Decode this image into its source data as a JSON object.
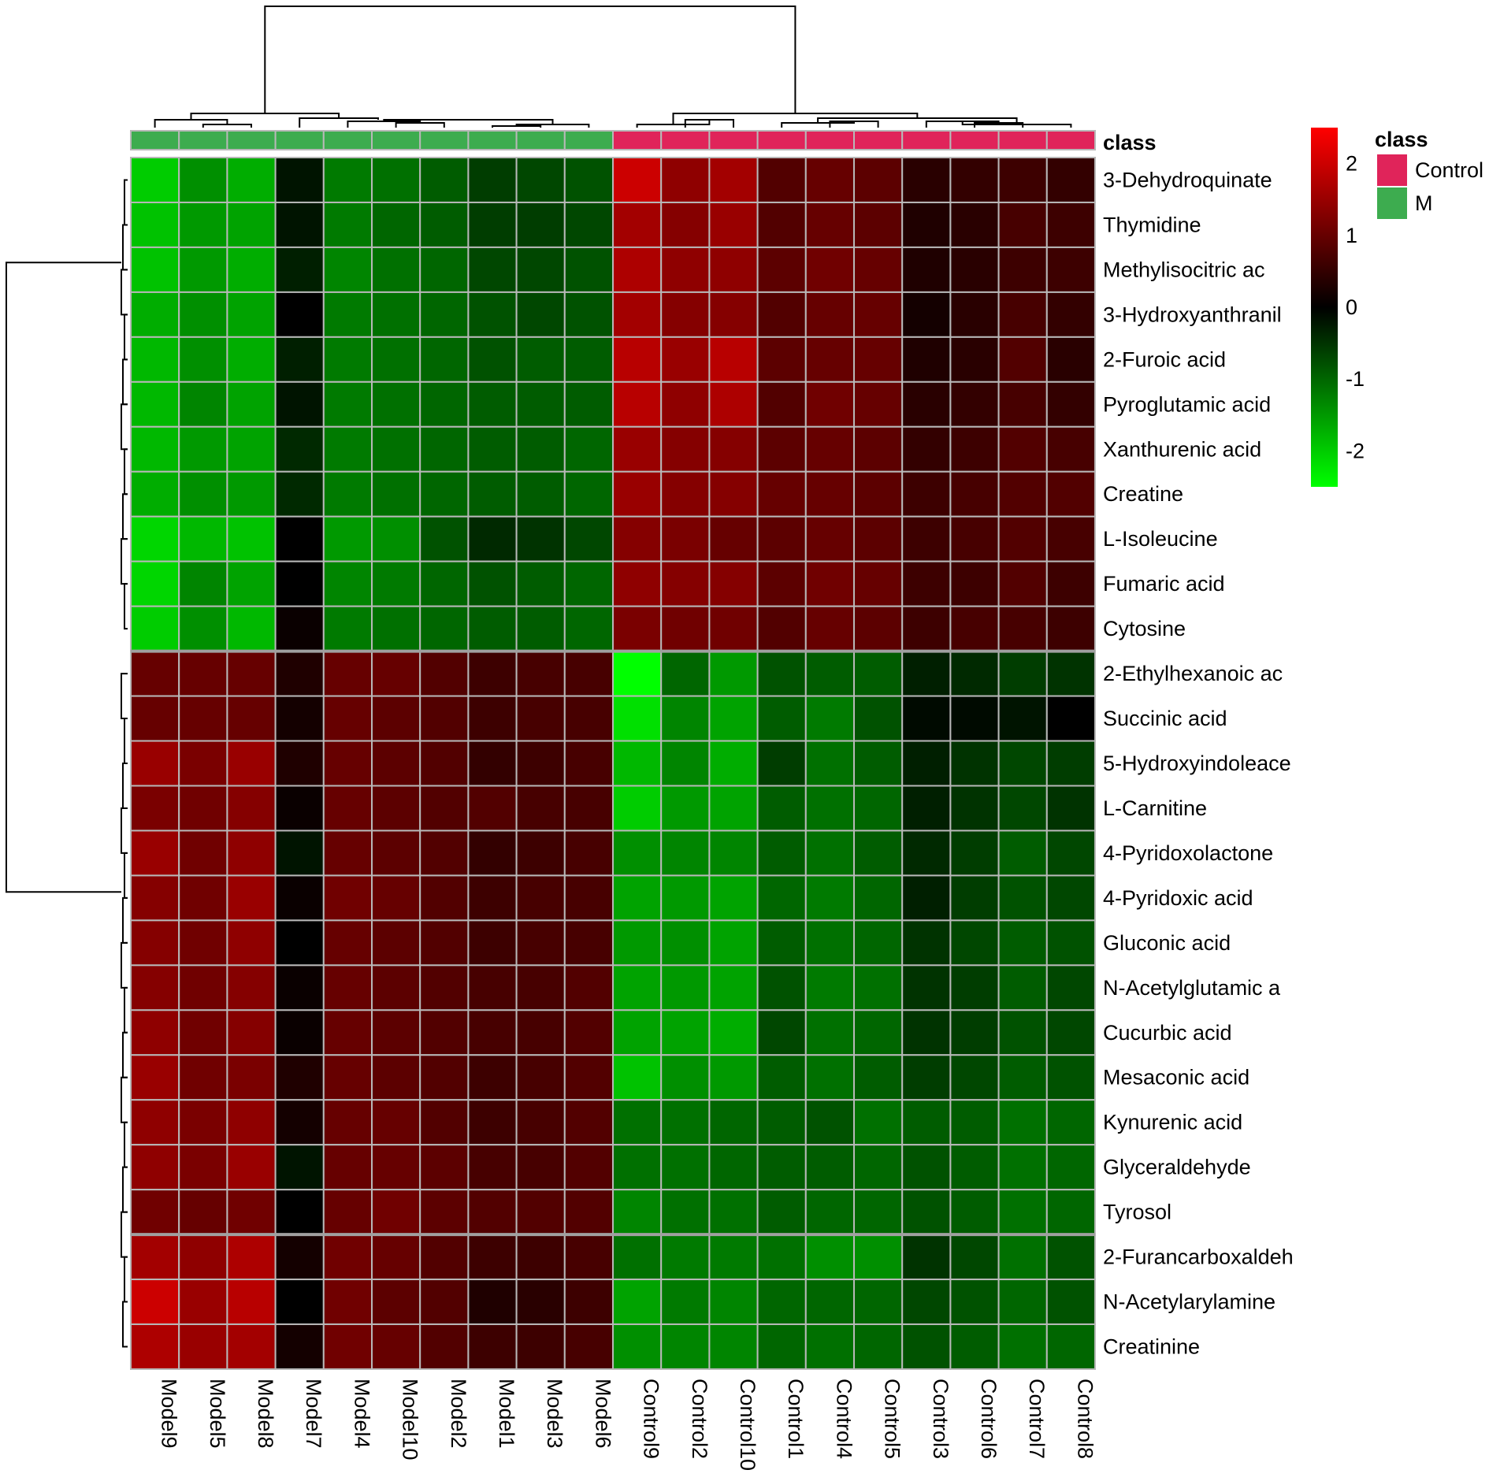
{
  "chart_data": {
    "type": "heatmap",
    "title": "",
    "rows": [
      "3-Dehydroquinate",
      "Thymidine",
      "Methylisocitric ac",
      "3-Hydroxyanthranil",
      "2-Furoic acid",
      "Pyroglutamic acid",
      "Xanthurenic acid",
      "Creatine",
      "L-Isoleucine",
      "Fumaric acid",
      "Cytosine",
      "2-Ethylhexanoic ac",
      "Succinic acid",
      "5-Hydroxyindoleace",
      "L-Carnitine",
      "4-Pyridoxolactone",
      "4-Pyridoxic acid",
      "Gluconic acid",
      "N-Acetylglutamic a",
      "Cucurbic acid",
      "Mesaconic acid",
      "Kynurenic acid",
      "Glyceraldehyde",
      "Tyrosol",
      "2-Furancarboxaldeh",
      "N-Acetylarylamine",
      "Creatinine"
    ],
    "columns": [
      "Model9",
      "Model5",
      "Model8",
      "Model7",
      "Model4",
      "Model10",
      "Model2",
      "Model1",
      "Model3",
      "Model6",
      "Control9",
      "Control2",
      "Control10",
      "Control1",
      "Control4",
      "Control5",
      "Control3",
      "Control6",
      "Control7",
      "Control8"
    ],
    "column_class": [
      "M",
      "M",
      "M",
      "M",
      "M",
      "M",
      "M",
      "M",
      "M",
      "M",
      "Control",
      "Control",
      "Control",
      "Control",
      "Control",
      "Control",
      "Control",
      "Control",
      "Control",
      "Control"
    ],
    "values": [
      [
        -2.0,
        -1.4,
        -1.7,
        -0.2,
        -1.2,
        -1.1,
        -0.9,
        -0.6,
        -0.7,
        -0.8,
        2.0,
        1.4,
        1.6,
        0.8,
        1.0,
        0.9,
        0.4,
        0.5,
        0.6,
        0.5
      ],
      [
        -1.9,
        -1.5,
        -1.6,
        -0.2,
        -1.2,
        -1.0,
        -0.9,
        -0.6,
        -0.6,
        -0.7,
        1.6,
        1.3,
        1.5,
        0.8,
        1.0,
        0.9,
        0.3,
        0.4,
        0.7,
        0.6
      ],
      [
        -1.9,
        -1.5,
        -1.7,
        -0.3,
        -1.3,
        -1.1,
        -1.0,
        -0.7,
        -0.7,
        -0.8,
        1.7,
        1.4,
        1.4,
        0.9,
        1.1,
        1.0,
        0.3,
        0.4,
        0.6,
        0.6
      ],
      [
        -1.7,
        -1.4,
        -1.6,
        0.0,
        -1.2,
        -1.1,
        -1.0,
        -0.8,
        -0.7,
        -0.8,
        1.6,
        1.3,
        1.3,
        0.8,
        1.0,
        1.0,
        0.2,
        0.4,
        0.7,
        0.5
      ],
      [
        -1.8,
        -1.4,
        -1.7,
        -0.3,
        -1.2,
        -1.1,
        -1.0,
        -0.8,
        -0.9,
        -0.9,
        1.8,
        1.5,
        1.8,
        0.9,
        1.0,
        1.0,
        0.3,
        0.4,
        0.8,
        0.4
      ],
      [
        -1.8,
        -1.3,
        -1.6,
        -0.2,
        -1.2,
        -1.1,
        -1.0,
        -0.9,
        -0.9,
        -0.9,
        1.8,
        1.4,
        1.7,
        0.8,
        1.1,
        1.0,
        0.4,
        0.5,
        0.7,
        0.5
      ],
      [
        -1.8,
        -1.5,
        -1.6,
        -0.4,
        -1.2,
        -1.1,
        -1.0,
        -0.9,
        -0.9,
        -1.0,
        1.5,
        1.3,
        1.3,
        0.9,
        1.0,
        0.9,
        0.5,
        0.6,
        0.8,
        0.7
      ],
      [
        -1.7,
        -1.4,
        -1.5,
        -0.4,
        -1.2,
        -1.1,
        -1.0,
        -0.9,
        -0.9,
        -1.0,
        1.5,
        1.3,
        1.3,
        1.0,
        1.0,
        0.9,
        0.6,
        0.7,
        0.8,
        0.8
      ],
      [
        -2.1,
        -1.8,
        -1.9,
        0.0,
        -1.5,
        -1.4,
        -0.8,
        -0.4,
        -0.5,
        -0.7,
        1.3,
        1.2,
        1.0,
        0.9,
        1.0,
        0.9,
        0.6,
        0.7,
        0.8,
        0.7
      ],
      [
        -2.1,
        -1.3,
        -1.6,
        0.0,
        -1.3,
        -1.2,
        -1.0,
        -0.8,
        -0.9,
        -1.0,
        1.4,
        1.3,
        1.3,
        0.9,
        1.1,
        1.0,
        0.6,
        0.6,
        0.8,
        0.6
      ],
      [
        -2.0,
        -1.4,
        -1.8,
        0.1,
        -1.2,
        -1.1,
        -1.0,
        -0.9,
        -0.9,
        -1.0,
        1.2,
        1.1,
        1.1,
        0.8,
        1.0,
        0.9,
        0.6,
        0.7,
        0.7,
        0.6
      ],
      [
        1.0,
        1.0,
        1.0,
        0.3,
        1.0,
        1.0,
        0.8,
        0.6,
        0.7,
        0.7,
        -2.5,
        -1.0,
        -1.5,
        -0.8,
        -0.9,
        -0.9,
        -0.3,
        -0.4,
        -0.6,
        -0.5
      ],
      [
        1.0,
        1.0,
        1.0,
        0.2,
        1.0,
        0.9,
        0.8,
        0.6,
        0.7,
        0.7,
        -2.2,
        -1.3,
        -1.6,
        -0.9,
        -1.2,
        -0.8,
        -0.1,
        -0.1,
        -0.2,
        0.0
      ],
      [
        1.5,
        1.2,
        1.5,
        0.3,
        1.0,
        0.9,
        0.8,
        0.5,
        0.6,
        0.7,
        -1.8,
        -1.3,
        -1.7,
        -0.6,
        -1.1,
        -0.9,
        -0.3,
        -0.5,
        -0.7,
        -0.6
      ],
      [
        1.2,
        1.1,
        1.3,
        0.1,
        1.0,
        0.9,
        0.8,
        0.8,
        0.7,
        0.7,
        -2.0,
        -1.5,
        -1.6,
        -0.9,
        -1.1,
        -1.0,
        -0.3,
        -0.5,
        -0.7,
        -0.5
      ],
      [
        1.5,
        1.1,
        1.4,
        -0.2,
        1.0,
        0.9,
        0.8,
        0.5,
        0.6,
        0.7,
        -1.4,
        -1.3,
        -1.3,
        -0.9,
        -1.1,
        -0.9,
        -0.4,
        -0.6,
        -0.9,
        -0.7
      ],
      [
        1.3,
        1.1,
        1.5,
        0.1,
        1.1,
        1.0,
        0.8,
        0.6,
        0.7,
        0.7,
        -1.6,
        -1.5,
        -1.6,
        -1.0,
        -1.2,
        -1.0,
        -0.3,
        -0.6,
        -0.8,
        -0.7
      ],
      [
        1.3,
        1.1,
        1.4,
        0.0,
        1.0,
        0.9,
        0.8,
        0.6,
        0.7,
        0.7,
        -1.5,
        -1.4,
        -1.6,
        -0.9,
        -1.1,
        -1.0,
        -0.5,
        -0.7,
        -0.9,
        -0.8
      ],
      [
        1.3,
        1.1,
        1.3,
        0.1,
        1.0,
        0.9,
        0.8,
        0.7,
        0.7,
        0.8,
        -1.6,
        -1.5,
        -1.6,
        -0.8,
        -1.2,
        -1.1,
        -0.5,
        -0.6,
        -0.9,
        -0.7
      ],
      [
        1.4,
        1.1,
        1.3,
        0.1,
        1.0,
        0.9,
        0.8,
        0.7,
        0.7,
        0.8,
        -1.6,
        -1.6,
        -1.7,
        -0.7,
        -1.1,
        -1.0,
        -0.5,
        -0.6,
        -0.8,
        -0.7
      ],
      [
        1.5,
        1.1,
        1.2,
        0.3,
        1.0,
        0.9,
        0.8,
        0.6,
        0.7,
        0.8,
        -1.9,
        -1.4,
        -1.5,
        -0.9,
        -1.1,
        -0.9,
        -0.6,
        -0.7,
        -0.9,
        -0.8
      ],
      [
        1.4,
        1.2,
        1.4,
        0.2,
        1.0,
        1.0,
        0.8,
        0.6,
        0.7,
        0.8,
        -1.1,
        -1.1,
        -1.0,
        -0.9,
        -0.8,
        -1.1,
        -0.9,
        -0.9,
        -1.1,
        -1.0
      ],
      [
        1.4,
        1.2,
        1.5,
        -0.2,
        1.0,
        1.0,
        0.9,
        0.7,
        0.7,
        0.8,
        -1.1,
        -1.1,
        -1.0,
        -0.9,
        -0.9,
        -1.0,
        -0.8,
        -0.9,
        -1.1,
        -1.0
      ],
      [
        1.1,
        1.0,
        1.1,
        0.0,
        1.0,
        1.1,
        0.9,
        0.8,
        0.8,
        0.8,
        -1.3,
        -1.1,
        -1.1,
        -0.9,
        -1.0,
        -1.0,
        -0.8,
        -0.9,
        -1.1,
        -1.0
      ],
      [
        1.6,
        1.4,
        1.7,
        0.2,
        1.1,
        1.0,
        0.8,
        0.6,
        0.6,
        0.7,
        -1.1,
        -1.2,
        -1.2,
        -1.1,
        -1.4,
        -1.4,
        -0.5,
        -0.7,
        -1.1,
        -0.8
      ],
      [
        2.0,
        1.5,
        1.8,
        0.0,
        1.1,
        0.9,
        0.8,
        0.3,
        0.4,
        0.6,
        -1.6,
        -1.2,
        -1.3,
        -1.0,
        -1.0,
        -1.0,
        -0.7,
        -0.8,
        -1.0,
        -0.8
      ],
      [
        1.7,
        1.5,
        1.6,
        0.2,
        1.1,
        1.0,
        0.8,
        0.6,
        0.6,
        0.7,
        -1.4,
        -1.3,
        -1.3,
        -1.0,
        -1.1,
        -1.0,
        -0.8,
        -0.9,
        -1.1,
        -1.0
      ]
    ],
    "color_scale": {
      "min": -2.5,
      "max": 2.5,
      "low_color": "#00ff00",
      "mid_color": "#000000",
      "high_color": "#ff0000"
    },
    "colorbar_ticks": [
      "2",
      "1",
      "0",
      "-1",
      "-2"
    ],
    "legend": {
      "title": "class",
      "placement": "top-right",
      "entries": [
        {
          "label": "Control",
          "color": "#e0245a"
        },
        {
          "label": "M",
          "color": "#3dac4f"
        }
      ]
    },
    "class_bar_label": "class",
    "grid": true,
    "dendrograms": true
  }
}
